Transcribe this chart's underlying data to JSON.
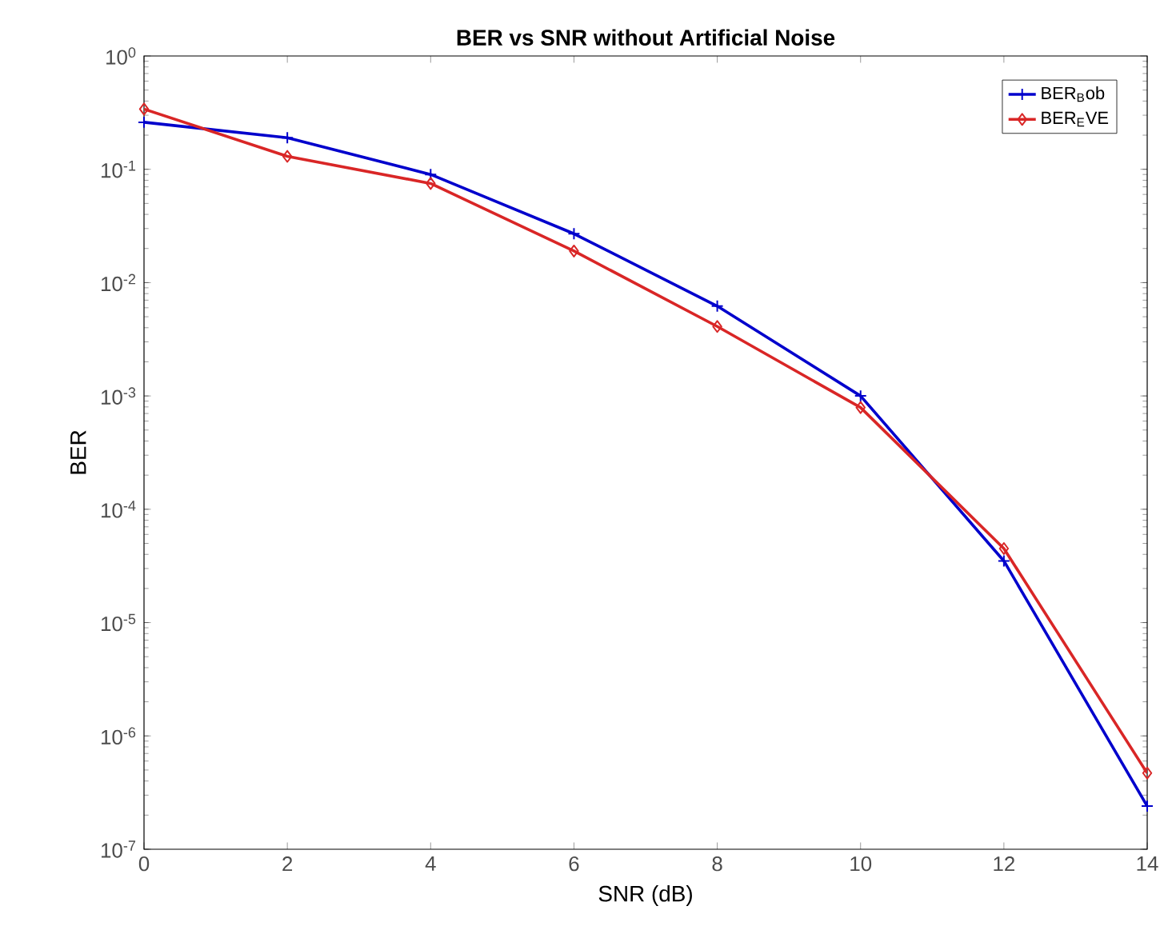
{
  "chart_data": {
    "type": "line",
    "title": "BER vs SNR without Artificial Noise",
    "xlabel": "SNR (dB)",
    "ylabel": "BER",
    "x": [
      0,
      2,
      4,
      6,
      8,
      10,
      12,
      14
    ],
    "series": [
      {
        "name": "BER$_{B}$ob",
        "color": "#0000cc",
        "marker": "cross",
        "values": [
          0.26,
          0.19,
          0.09,
          0.027,
          0.0062,
          0.001,
          3.5e-05,
          2.4e-07
        ]
      },
      {
        "name": "BER$_{E}$VE",
        "color": "#d92626",
        "marker": "diamond",
        "values": [
          0.34,
          0.13,
          0.075,
          0.019,
          0.0041,
          0.00079,
          4.5e-05,
          4.7e-07
        ]
      }
    ],
    "xlim": [
      0,
      14
    ],
    "xticks": [
      0,
      2,
      4,
      6,
      8,
      10,
      12,
      14
    ],
    "ylim": [
      1e-07,
      1
    ],
    "yticks": [
      {
        "value": 1e-07,
        "label": "10$^{-7}$"
      },
      {
        "value": 1e-06,
        "label": "10$^{-6}$"
      },
      {
        "value": 1e-05,
        "label": "10$^{-5}$"
      },
      {
        "value": 0.0001,
        "label": "10$^{-4}$"
      },
      {
        "value": 0.001,
        "label": "10$^{-3}$"
      },
      {
        "value": 0.01,
        "label": "10$^{-2}$"
      },
      {
        "value": 0.1,
        "label": "10$^{-1}$"
      },
      {
        "value": 1,
        "label": "10$^{0}$"
      }
    ],
    "log": "y",
    "grid": false,
    "legend": "top right",
    "line_style": "solid"
  }
}
